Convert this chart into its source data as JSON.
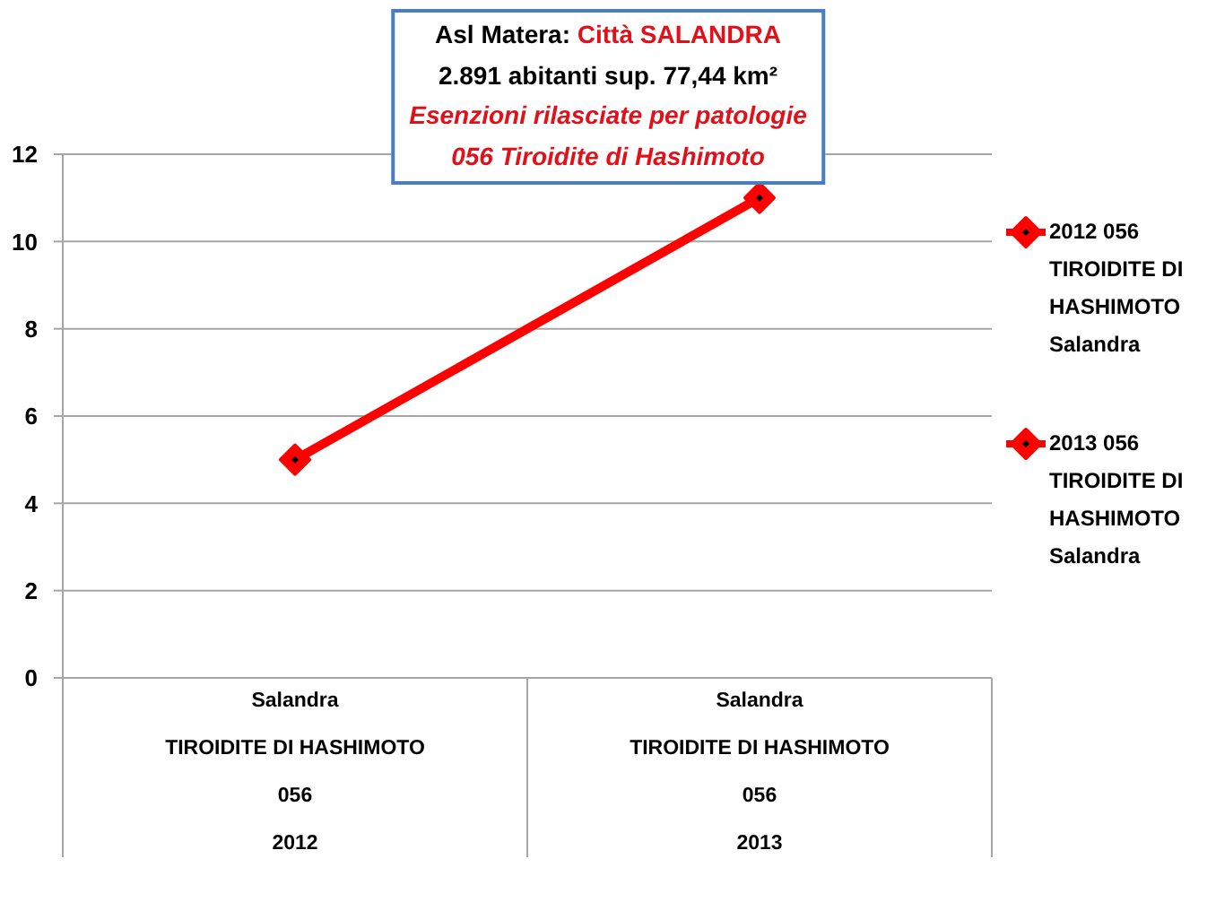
{
  "chart_data": {
    "type": "line",
    "title": "Asl Matera: Città SALANDRA",
    "subtitle": "2.891 abitanti sup. 77,44 km²\nEsenzioni rilasciate per patologie\n056 Tiroidite di Hashimoto",
    "categories": [
      "Salandra\nTIROIDITE DI HASHIMOTO\n056\n2012",
      "Salandra\nTIROIDITE DI HASHIMOTO\n056\n2013"
    ],
    "series": [
      {
        "color": "#ff0000",
        "values": [
          5,
          11
        ]
      },
      {
        "type": "scatter",
        "name": "2012 056 TIROIDITE DI HASHIMOTO Salandra",
        "color": "#ff0000",
        "values": [
          5,
          null
        ]
      },
      {
        "type": "scatter",
        "name": "2013 056 TIROIDITE DI HASHIMOTO Salandra",
        "color": "#ff0000",
        "values": [
          null,
          11
        ]
      }
    ],
    "ylim": [
      0,
      12
    ],
    "yticks": [
      0,
      2,
      4,
      6,
      8,
      10,
      12
    ],
    "grid": "y",
    "legend": "right",
    "marker": "diamond",
    "line_style": "solid"
  }
}
